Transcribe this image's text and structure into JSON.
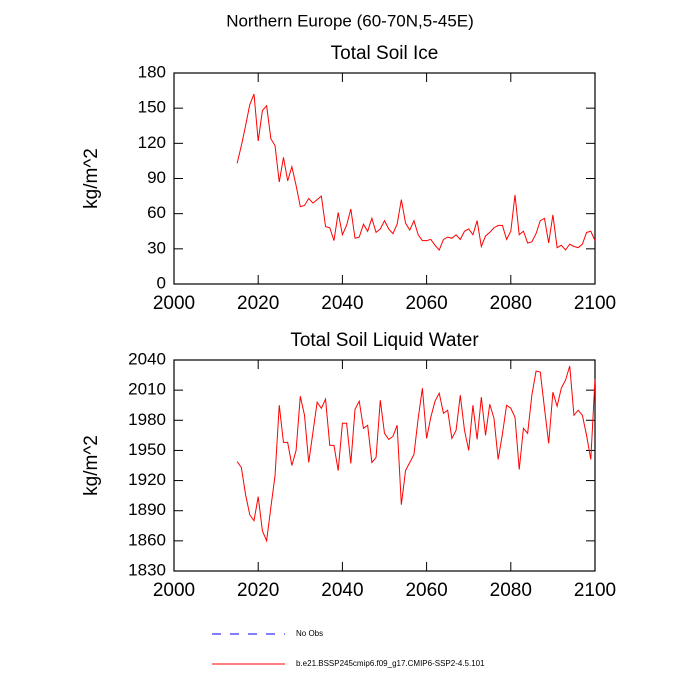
{
  "title": "Northern Europe (60-70N,5-45E)",
  "legend": [
    {
      "name": "No Obs",
      "color": "#0000ff",
      "dashed": true
    },
    {
      "name": "b.e21.BSSP245cmip6.f09_g17.CMIP6-SSP2-4.5.101",
      "color": "#ff0000",
      "dashed": false
    }
  ],
  "chart_data": [
    {
      "type": "line",
      "title": "Total Soil Ice",
      "ylabel": "kg/m^2",
      "x": [
        2015,
        2016,
        2017,
        2018,
        2019,
        2020,
        2021,
        2022,
        2023,
        2024,
        2025,
        2026,
        2027,
        2028,
        2029,
        2030,
        2031,
        2032,
        2033,
        2034,
        2035,
        2036,
        2037,
        2038,
        2039,
        2040,
        2041,
        2042,
        2043,
        2044,
        2045,
        2046,
        2047,
        2048,
        2049,
        2050,
        2051,
        2052,
        2053,
        2054,
        2055,
        2056,
        2057,
        2058,
        2059,
        2060,
        2061,
        2062,
        2063,
        2064,
        2065,
        2066,
        2067,
        2068,
        2069,
        2070,
        2071,
        2072,
        2073,
        2074,
        2075,
        2076,
        2077,
        2078,
        2079,
        2080,
        2081,
        2082,
        2083,
        2084,
        2085,
        2086,
        2087,
        2088,
        2089,
        2090,
        2091,
        2092,
        2093,
        2094,
        2095,
        2096,
        2097,
        2098,
        2099,
        2100
      ],
      "series": [
        {
          "color": "#ff0000",
          "values": [
            103,
            118,
            135,
            153,
            162,
            122,
            148,
            152,
            124,
            118,
            87,
            108,
            88,
            100,
            84,
            66,
            67,
            73,
            69,
            72,
            75,
            49,
            48,
            37,
            61,
            42,
            50,
            64,
            39,
            40,
            51,
            45,
            56,
            44,
            47,
            54,
            47,
            43,
            51,
            72,
            52,
            46,
            54,
            42,
            37,
            37,
            38,
            33,
            29,
            38,
            40,
            39,
            42,
            38,
            45,
            47,
            42,
            54,
            32,
            41,
            44,
            48,
            50,
            50,
            38,
            45,
            76,
            42,
            45,
            35,
            36,
            43,
            54,
            56,
            35,
            59,
            31,
            33,
            29,
            34,
            32,
            31,
            34,
            44,
            45,
            37
          ]
        }
      ],
      "xlim": [
        2000,
        2100
      ],
      "xticks": [
        2000,
        2020,
        2040,
        2060,
        2080,
        2100
      ],
      "ylim": [
        0,
        180
      ],
      "yticks": [
        0,
        30,
        60,
        90,
        120,
        150,
        180
      ]
    },
    {
      "type": "line",
      "title": "Total Soil Liquid Water",
      "ylabel": "kg/m^2",
      "x": [
        2015,
        2016,
        2017,
        2018,
        2019,
        2020,
        2021,
        2022,
        2023,
        2024,
        2025,
        2026,
        2027,
        2028,
        2029,
        2030,
        2031,
        2032,
        2033,
        2034,
        2035,
        2036,
        2037,
        2038,
        2039,
        2040,
        2041,
        2042,
        2043,
        2044,
        2045,
        2046,
        2047,
        2048,
        2049,
        2050,
        2051,
        2052,
        2053,
        2054,
        2055,
        2056,
        2057,
        2058,
        2059,
        2060,
        2061,
        2062,
        2063,
        2064,
        2065,
        2066,
        2067,
        2068,
        2069,
        2070,
        2071,
        2072,
        2073,
        2074,
        2075,
        2076,
        2077,
        2078,
        2079,
        2080,
        2081,
        2082,
        2083,
        2084,
        2085,
        2086,
        2087,
        2088,
        2089,
        2090,
        2091,
        2092,
        2093,
        2094,
        2095,
        2096,
        2097,
        2098,
        2099,
        2100
      ],
      "series": [
        {
          "color": "#ff0000",
          "values": [
            1939,
            1933,
            1906,
            1886,
            1880,
            1904,
            1870,
            1860,
            1893,
            1925,
            1995,
            1958,
            1958,
            1935,
            1950,
            2004,
            1985,
            1938,
            1968,
            1998,
            1992,
            2001,
            1955,
            1955,
            1930,
            1977,
            1977,
            1937,
            1991,
            1999,
            1972,
            1975,
            1938,
            1943,
            2000,
            1967,
            1961,
            1964,
            1975,
            1896,
            1930,
            1938,
            1946,
            1982,
            2012,
            1962,
            1983,
            1999,
            2007,
            1987,
            1990,
            1962,
            1970,
            2005,
            1970,
            1950,
            1995,
            1961,
            2003,
            1965,
            1996,
            1982,
            1941,
            1966,
            1995,
            1992,
            1983,
            1931,
            1972,
            1967,
            2005,
            2029,
            2028,
            1992,
            1957,
            2008,
            1994,
            2012,
            2020,
            2034,
            1985,
            1990,
            1985,
            1965,
            1941,
            2021
          ]
        }
      ],
      "xlim": [
        2000,
        2100
      ],
      "xticks": [
        2000,
        2020,
        2040,
        2060,
        2080,
        2100
      ],
      "ylim": [
        1830,
        2040
      ],
      "yticks": [
        1830,
        1860,
        1890,
        1920,
        1950,
        1980,
        2010,
        2040
      ]
    }
  ]
}
